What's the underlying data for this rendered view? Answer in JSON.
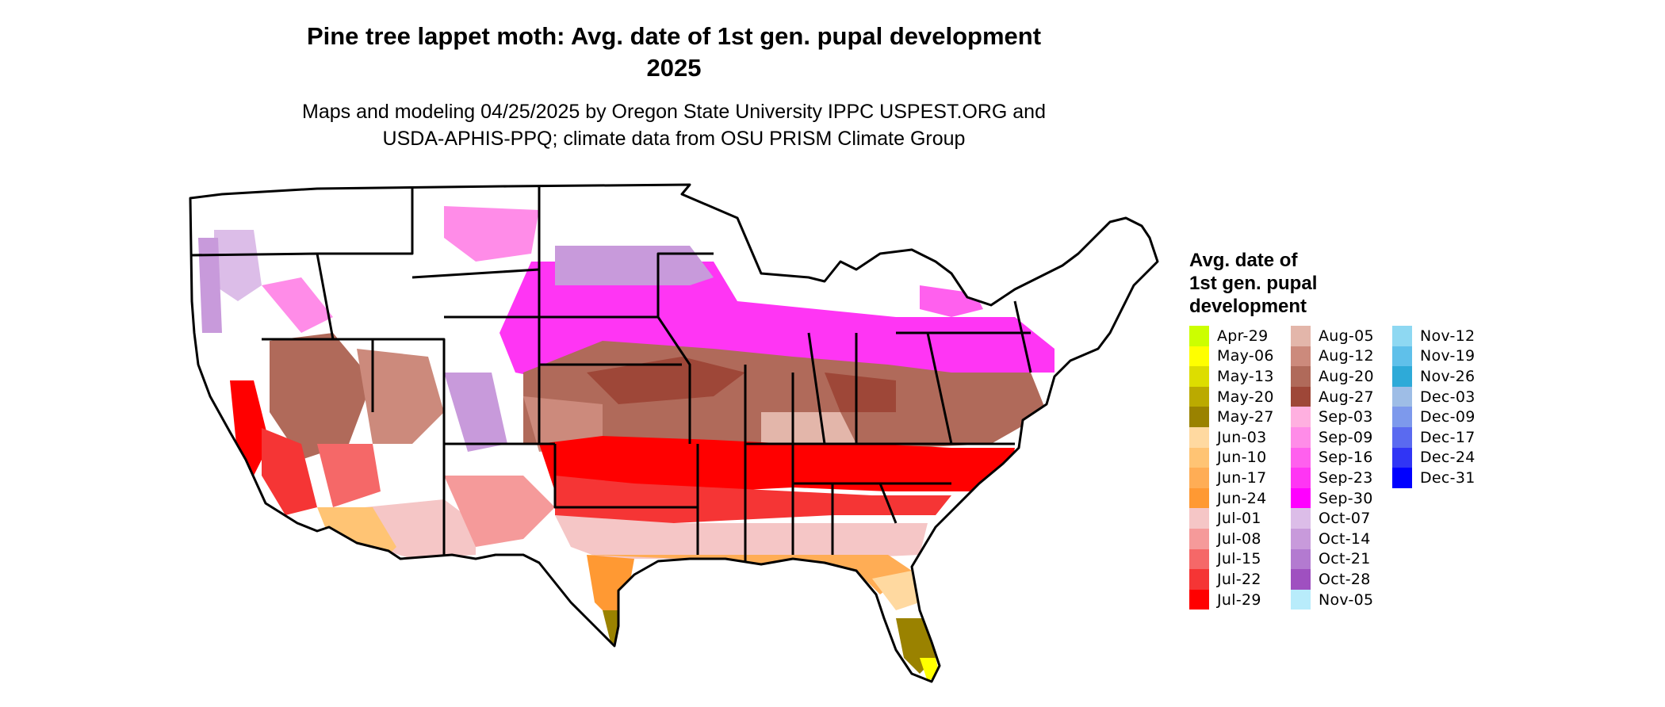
{
  "map": {
    "title_line1": "Pine tree lappet moth: Avg. date of 1st gen. pupal development",
    "title_line2": "2025",
    "subtitle_line1": "Maps and modeling 04/25/2025 by Oregon State University IPPC USPEST.ORG and",
    "subtitle_line2": "USDA-APHIS-PPQ; climate data from OSU PRISM Climate Group",
    "region": "Contiguous United States (state boundaries)",
    "no_data_color": "#ffffff",
    "boundary_color": "#000000"
  },
  "legend": {
    "title_line1": "Avg. date of",
    "title_line2": "1st gen. pupal",
    "title_line3": "development",
    "items": [
      {
        "label": "Apr-29",
        "color": "#ccff00"
      },
      {
        "label": "May-06",
        "color": "#ffff00"
      },
      {
        "label": "May-13",
        "color": "#dddd00"
      },
      {
        "label": "May-20",
        "color": "#bbaa00"
      },
      {
        "label": "May-27",
        "color": "#9a8200"
      },
      {
        "label": "Jun-03",
        "color": "#ffd9a0"
      },
      {
        "label": "Jun-10",
        "color": "#ffc474"
      },
      {
        "label": "Jun-17",
        "color": "#ffad55"
      },
      {
        "label": "Jun-24",
        "color": "#ff9933"
      },
      {
        "label": "Jul-01",
        "color": "#f5c6c6"
      },
      {
        "label": "Jul-08",
        "color": "#f59a9a"
      },
      {
        "label": "Jul-15",
        "color": "#f56868"
      },
      {
        "label": "Jul-22",
        "color": "#f53535"
      },
      {
        "label": "Jul-29",
        "color": "#ff0000"
      },
      {
        "label": "Aug-05",
        "color": "#e3b6aa"
      },
      {
        "label": "Aug-12",
        "color": "#cc8a7c"
      },
      {
        "label": "Aug-20",
        "color": "#b06a5a"
      },
      {
        "label": "Aug-27",
        "color": "#9e4738"
      },
      {
        "label": "Sep-03",
        "color": "#ffb0e0"
      },
      {
        "label": "Sep-09",
        "color": "#ff8ce8"
      },
      {
        "label": "Sep-16",
        "color": "#ff60ee"
      },
      {
        "label": "Sep-23",
        "color": "#ff35f4"
      },
      {
        "label": "Sep-30",
        "color": "#ff00ff"
      },
      {
        "label": "Oct-07",
        "color": "#dcbde8"
      },
      {
        "label": "Oct-14",
        "color": "#c89adb"
      },
      {
        "label": "Oct-21",
        "color": "#b37ad0"
      },
      {
        "label": "Oct-28",
        "color": "#9f50c0"
      },
      {
        "label": "Nov-05",
        "color": "#b8ecfb"
      },
      {
        "label": "Nov-12",
        "color": "#8ed8f2"
      },
      {
        "label": "Nov-19",
        "color": "#5fc0ea"
      },
      {
        "label": "Nov-26",
        "color": "#2eaad8"
      },
      {
        "label": "Dec-03",
        "color": "#9ebde6"
      },
      {
        "label": "Dec-09",
        "color": "#7d99ec"
      },
      {
        "label": "Dec-17",
        "color": "#5a6af0"
      },
      {
        "label": "Dec-24",
        "color": "#3035f5"
      },
      {
        "label": "Dec-31",
        "color": "#0000ff"
      }
    ]
  }
}
